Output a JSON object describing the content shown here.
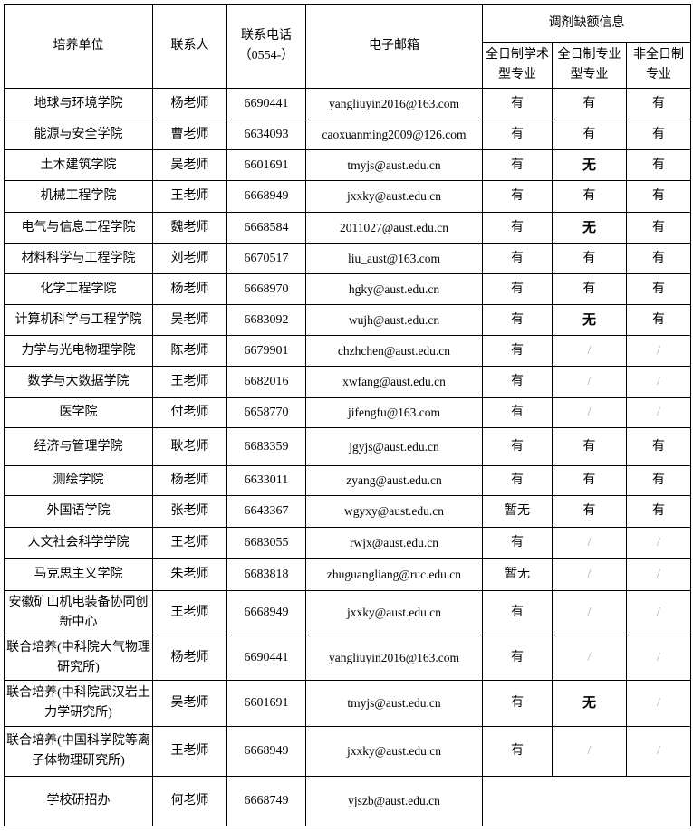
{
  "header": {
    "unit": "培养单位",
    "contact": "联系人",
    "phone_line1": "联系电话",
    "phone_line2": "（0554-）",
    "email": "电子邮箱",
    "vacancy_group": "调剂缺额信息",
    "col_academic": "全日制学术型专业",
    "col_professional": "全日制专业型专业",
    "col_parttime": "非全日制专业"
  },
  "rows": [
    {
      "unit": "地球与环境学院",
      "contact": "杨老师",
      "phone": "6690441",
      "email": "yangliuyin2016@163.com",
      "a": "有",
      "p": "有",
      "n": "有"
    },
    {
      "unit": "能源与安全学院",
      "contact": "曹老师",
      "phone": "6634093",
      "email": "caoxuanming2009@126.com",
      "a": "有",
      "p": "有",
      "n": "有"
    },
    {
      "unit": "土木建筑学院",
      "contact": "吴老师",
      "phone": "6601691",
      "email": "tmyjs@aust.edu.cn",
      "a": "有",
      "p": "无",
      "n": "有"
    },
    {
      "unit": "机械工程学院",
      "contact": "王老师",
      "phone": "6668949",
      "email": "jxxky@aust.edu.cn",
      "a": "有",
      "p": "有",
      "n": "有"
    },
    {
      "unit": "电气与信息工程学院",
      "contact": "魏老师",
      "phone": "6668584",
      "email": "2011027@aust.edu.cn",
      "a": "有",
      "p": "无",
      "n": "有"
    },
    {
      "unit": "材料科学与工程学院",
      "contact": "刘老师",
      "phone": "6670517",
      "email": "liu_aust@163.com",
      "a": "有",
      "p": "有",
      "n": "有"
    },
    {
      "unit": "化学工程学院",
      "contact": "杨老师",
      "phone": "6668970",
      "email": "hgky@aust.edu.cn",
      "a": "有",
      "p": "有",
      "n": "有"
    },
    {
      "unit": "计算机科学与工程学院",
      "contact": "吴老师",
      "phone": "6683092",
      "email": "wujh@aust.edu.cn",
      "a": "有",
      "p": "无",
      "n": "有"
    },
    {
      "unit": "力学与光电物理学院",
      "contact": "陈老师",
      "phone": "6679901",
      "email": "chzhchen@aust.edu.cn",
      "a": "有",
      "p": "/",
      "n": "/"
    },
    {
      "unit": "数学与大数据学院",
      "contact": "王老师",
      "phone": "6682016",
      "email": "xwfang@aust.edu.cn",
      "a": "有",
      "p": "/",
      "n": "/"
    },
    {
      "unit": "医学院",
      "contact": "付老师",
      "phone": "6658770",
      "email": "jifengfu@163.com",
      "a": "有",
      "p": "/",
      "n": "/"
    },
    {
      "unit": "经济与管理学院",
      "contact": "耿老师",
      "phone": "6683359",
      "email": "jgyjs@aust.edu.cn",
      "a": "有",
      "p": "有",
      "n": "有"
    },
    {
      "unit": "测绘学院",
      "contact": "杨老师",
      "phone": "6633011",
      "email": "zyang@aust.edu.cn",
      "a": "有",
      "p": "有",
      "n": "有"
    },
    {
      "unit": "外国语学院",
      "contact": "张老师",
      "phone": "6643367",
      "email": "wgyxy@aust.edu.cn",
      "a": "暂无",
      "p": "有",
      "n": "有"
    },
    {
      "unit": "人文社会科学学院",
      "contact": "王老师",
      "phone": "6683055",
      "email": "rwjx@aust.edu.cn",
      "a": "有",
      "p": "/",
      "n": "/"
    },
    {
      "unit": "马克思主义学院",
      "contact": "朱老师",
      "phone": "6683818",
      "email": "zhuguangliang@ruc.edu.cn",
      "a": "暂无",
      "p": "/",
      "n": "/"
    },
    {
      "unit": "安徽矿山机电装备协同创新中心",
      "contact": "王老师",
      "phone": "6668949",
      "email": "jxxky@aust.edu.cn",
      "a": "有",
      "p": "/",
      "n": "/"
    },
    {
      "unit": "联合培养(中科院大气物理研究所)",
      "contact": "杨老师",
      "phone": "6690441",
      "email": "yangliuyin2016@163.com",
      "a": "有",
      "p": "/",
      "n": "/"
    },
    {
      "unit": "联合培养(中科院武汉岩土力学研究所)",
      "contact": "吴老师",
      "phone": "6601691",
      "email": "tmyjs@aust.edu.cn",
      "a": "有",
      "p": "无",
      "n": "/"
    },
    {
      "unit": "联合培养(中国科学院等离子体物理研究所)",
      "contact": "王老师",
      "phone": "6668949",
      "email": "jxxky@aust.edu.cn",
      "a": "有",
      "p": "/",
      "n": "/"
    }
  ],
  "last_row": {
    "unit": "学校研招办",
    "contact": "何老师",
    "phone": "6668749",
    "email": "yjszb@aust.edu.cn"
  }
}
